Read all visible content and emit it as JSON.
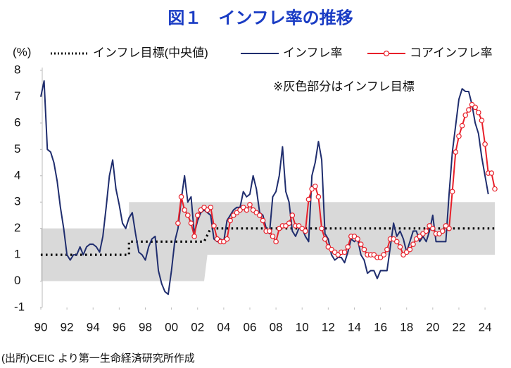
{
  "chart_data": {
    "type": "line",
    "title": "図１　インフレ率の推移",
    "y_label": "(%)",
    "annotation": "※灰色部分はインフレ目標",
    "source": "(出所)CEIC より第一生命経済研究所作成",
    "xlim": [
      1990,
      2024.75
    ],
    "ylim": [
      -1,
      8
    ],
    "xticks": [
      {
        "value": 1990,
        "label": "90"
      },
      {
        "value": 1992,
        "label": "92"
      },
      {
        "value": 1994,
        "label": "94"
      },
      {
        "value": 1996,
        "label": "96"
      },
      {
        "value": 1998,
        "label": "98"
      },
      {
        "value": 2000,
        "label": "00"
      },
      {
        "value": 2002,
        "label": "02"
      },
      {
        "value": 2004,
        "label": "04"
      },
      {
        "value": 2006,
        "label": "06"
      },
      {
        "value": 2008,
        "label": "08"
      },
      {
        "value": 2010,
        "label": "10"
      },
      {
        "value": 2012,
        "label": "12"
      },
      {
        "value": 2014,
        "label": "14"
      },
      {
        "value": 2016,
        "label": "16"
      },
      {
        "value": 2018,
        "label": "18"
      },
      {
        "value": 2020,
        "label": "20"
      },
      {
        "value": 2022,
        "label": "22"
      },
      {
        "value": 2024,
        "label": "24"
      }
    ],
    "yticks": [
      -1,
      0,
      1,
      2,
      3,
      4,
      5,
      6,
      7,
      8
    ],
    "grid": false,
    "band": {
      "color": "#d9d9d9",
      "x": [
        1990,
        1996.75,
        1996.75,
        2002.5,
        2002.75,
        2024.75
      ],
      "lower": [
        0,
        0,
        0,
        0,
        1,
        1
      ],
      "upper": [
        2,
        2,
        3,
        3,
        3,
        3
      ]
    },
    "series": [
      {
        "name": "インフレ目標(中央値)",
        "color": "#000000",
        "style": "dotted",
        "x": [
          1990,
          1996.75,
          1996.75,
          2002.5,
          2003,
          2024.75
        ],
        "values": [
          1,
          1,
          1.5,
          1.5,
          2,
          2
        ]
      },
      {
        "name": "インフレ率",
        "color": "#1f2d6e",
        "style": "solid",
        "x": [
          1990,
          1990.25,
          1990.5,
          1990.75,
          1991,
          1991.25,
          1991.5,
          1991.75,
          1992,
          1992.25,
          1992.5,
          1992.75,
          1993,
          1993.25,
          1993.5,
          1993.75,
          1994,
          1994.25,
          1994.5,
          1994.75,
          1995,
          1995.25,
          1995.5,
          1995.75,
          1996,
          1996.25,
          1996.5,
          1996.75,
          1997,
          1997.25,
          1997.5,
          1997.75,
          1998,
          1998.25,
          1998.5,
          1998.75,
          1999,
          1999.25,
          1999.5,
          1999.75,
          2000,
          2000.25,
          2000.5,
          2000.75,
          2001,
          2001.25,
          2001.5,
          2001.75,
          2002,
          2002.25,
          2002.5,
          2002.75,
          2003,
          2003.25,
          2003.5,
          2003.75,
          2004,
          2004.25,
          2004.5,
          2004.75,
          2005,
          2005.25,
          2005.5,
          2005.75,
          2006,
          2006.25,
          2006.5,
          2006.75,
          2007,
          2007.25,
          2007.5,
          2007.75,
          2008,
          2008.25,
          2008.5,
          2008.75,
          2009,
          2009.25,
          2009.5,
          2009.75,
          2010,
          2010.25,
          2010.5,
          2010.75,
          2011,
          2011.25,
          2011.5,
          2011.75,
          2012,
          2012.25,
          2012.5,
          2012.75,
          2013,
          2013.25,
          2013.5,
          2013.75,
          2014,
          2014.25,
          2014.5,
          2014.75,
          2015,
          2015.25,
          2015.5,
          2015.75,
          2016,
          2016.25,
          2016.5,
          2016.75,
          2017,
          2017.25,
          2017.5,
          2017.75,
          2018,
          2018.25,
          2018.5,
          2018.75,
          2019,
          2019.25,
          2019.5,
          2019.75,
          2020,
          2020.25,
          2020.5,
          2020.75,
          2021,
          2021.25,
          2021.5,
          2021.75,
          2022,
          2022.25,
          2022.5,
          2022.75,
          2023,
          2023.25,
          2023.5,
          2023.75,
          2024,
          2024.25
        ],
        "values": [
          7.0,
          7.6,
          5.0,
          4.9,
          4.5,
          3.8,
          2.8,
          2.0,
          1.0,
          0.8,
          1.0,
          1.0,
          1.3,
          1.0,
          1.3,
          1.4,
          1.4,
          1.3,
          1.1,
          1.7,
          2.8,
          4.0,
          4.6,
          3.5,
          2.9,
          2.2,
          2.0,
          2.4,
          2.6,
          1.8,
          1.1,
          1.0,
          0.8,
          1.3,
          1.6,
          1.7,
          0.4,
          -0.1,
          -0.4,
          -0.5,
          0.4,
          1.5,
          2.0,
          3.1,
          4.0,
          3.0,
          3.2,
          1.8,
          2.3,
          2.6,
          2.7,
          2.6,
          2.5,
          1.6,
          1.5,
          1.6,
          1.5,
          2.3,
          2.5,
          2.7,
          2.8,
          2.8,
          3.4,
          3.2,
          3.3,
          4.0,
          3.5,
          2.6,
          2.5,
          2.0,
          1.8,
          3.2,
          3.4,
          4.0,
          5.1,
          3.4,
          3.0,
          1.9,
          1.7,
          2.0,
          2.0,
          1.7,
          1.5,
          4.0,
          4.5,
          5.3,
          4.6,
          1.8,
          1.6,
          1.0,
          0.8,
          0.9,
          0.9,
          0.7,
          1.1,
          1.6,
          1.5,
          1.6,
          1.0,
          0.8,
          0.3,
          0.4,
          0.4,
          0.1,
          0.4,
          0.4,
          0.4,
          1.3,
          2.2,
          1.7,
          1.9,
          1.6,
          1.1,
          1.5,
          1.9,
          1.9,
          1.5,
          1.7,
          1.5,
          1.9,
          2.5,
          1.5,
          1.5,
          1.5,
          1.5,
          3.3,
          4.9,
          5.9,
          6.9,
          7.3,
          7.2,
          7.2,
          6.7,
          6.0,
          5.6,
          4.7,
          4.0,
          3.3
        ]
      },
      {
        "name": "コアインフレ率",
        "color": "#e8202a",
        "style": "markers",
        "x": [
          2000.5,
          2000.75,
          2001,
          2001.25,
          2001.5,
          2001.75,
          2002,
          2002.25,
          2002.5,
          2002.75,
          2003,
          2003.25,
          2003.5,
          2003.75,
          2004,
          2004.25,
          2004.5,
          2004.75,
          2005,
          2005.25,
          2005.5,
          2005.75,
          2006,
          2006.25,
          2006.5,
          2006.75,
          2007,
          2007.25,
          2007.5,
          2007.75,
          2008,
          2008.25,
          2008.5,
          2008.75,
          2009,
          2009.25,
          2009.5,
          2009.75,
          2010,
          2010.25,
          2010.5,
          2010.75,
          2011,
          2011.25,
          2011.5,
          2011.75,
          2012,
          2012.25,
          2012.5,
          2012.75,
          2013,
          2013.25,
          2013.5,
          2013.75,
          2014,
          2014.25,
          2014.5,
          2014.75,
          2015,
          2015.25,
          2015.5,
          2015.75,
          2016,
          2016.25,
          2016.5,
          2016.75,
          2017,
          2017.25,
          2017.5,
          2017.75,
          2018,
          2018.25,
          2018.5,
          2018.75,
          2019,
          2019.25,
          2019.5,
          2019.75,
          2020,
          2020.25,
          2020.5,
          2020.75,
          2021,
          2021.25,
          2021.5,
          2021.75,
          2022,
          2022.25,
          2022.5,
          2022.75,
          2023,
          2023.25,
          2023.5,
          2023.75,
          2024,
          2024.25,
          2024.5,
          2024.75
        ],
        "values": [
          2.2,
          3.2,
          2.7,
          2.5,
          2.2,
          1.7,
          2.5,
          2.7,
          2.8,
          2.7,
          2.8,
          2.1,
          1.6,
          1.5,
          1.5,
          1.6,
          2.3,
          2.5,
          2.6,
          2.7,
          2.8,
          2.7,
          2.9,
          2.7,
          2.6,
          2.5,
          2.3,
          1.9,
          1.9,
          1.7,
          1.5,
          2.0,
          2.1,
          2.1,
          2.2,
          2.5,
          2.1,
          2.1,
          2.0,
          1.9,
          3.1,
          3.5,
          3.6,
          3.2,
          2.0,
          1.6,
          1.3,
          1.2,
          1.1,
          1.0,
          1.1,
          1.1,
          1.3,
          1.7,
          1.7,
          1.6,
          1.4,
          1.2,
          1.0,
          1.0,
          1.0,
          0.9,
          0.9,
          1.0,
          1.2,
          1.6,
          1.6,
          1.5,
          1.3,
          1.0,
          1.1,
          1.2,
          1.4,
          1.6,
          1.7,
          1.8,
          1.9,
          2.1,
          2.0,
          1.8,
          1.8,
          1.9,
          2.1,
          2.0,
          3.4,
          4.9,
          5.5,
          5.9,
          6.3,
          6.5,
          6.7,
          6.6,
          6.4,
          6.1,
          5.2,
          4.1,
          4.1,
          3.5
        ]
      }
    ]
  }
}
